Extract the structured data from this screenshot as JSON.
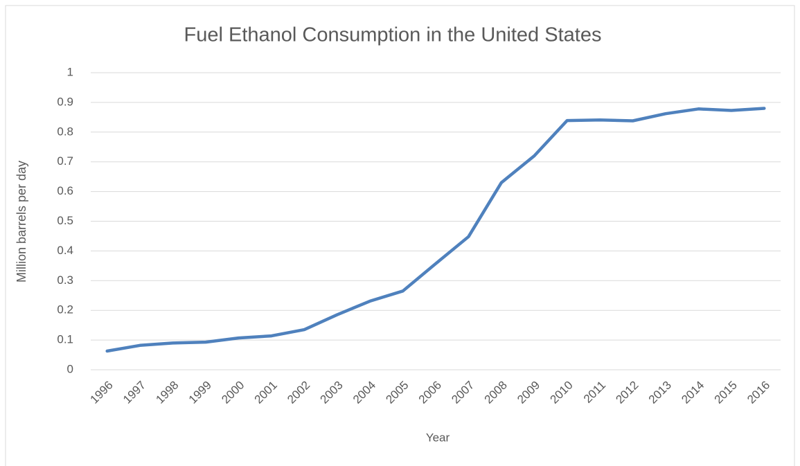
{
  "chart_data": {
    "type": "line",
    "title": "Fuel Ethanol Consumption in the United States",
    "x_label": "Year",
    "y_label": "Million barrels per day",
    "categories": [
      "1996",
      "1997",
      "1998",
      "1999",
      "2000",
      "2001",
      "2002",
      "2003",
      "2004",
      "2005",
      "2006",
      "2007",
      "2008",
      "2009",
      "2010",
      "2011",
      "2012",
      "2013",
      "2014",
      "2015",
      "2016"
    ],
    "series": [
      {
        "name": "Fuel ethanol consumption",
        "color": "#4f81bd",
        "values": [
          0.063,
          0.082,
          0.09,
          0.093,
          0.107,
          0.114,
          0.135,
          0.185,
          0.231,
          0.265,
          0.357,
          0.448,
          0.63,
          0.72,
          0.839,
          0.841,
          0.838,
          0.862,
          0.878,
          0.873,
          0.88
        ]
      }
    ],
    "ylim": [
      0,
      1
    ],
    "yticks": [
      0,
      0.1,
      0.2,
      0.3,
      0.4,
      0.5,
      0.6,
      0.7,
      0.8,
      0.9,
      1
    ],
    "grid": true
  }
}
